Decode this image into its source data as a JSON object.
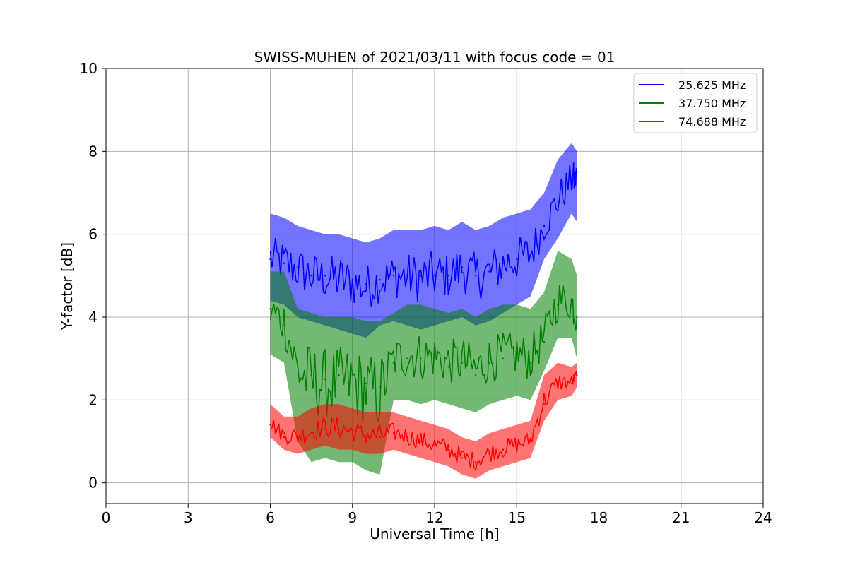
{
  "chart_data": {
    "type": "line",
    "title": "SWISS-MUHEN of 2021/03/11 with focus code = 01",
    "xlabel": "Universal Time [h]",
    "ylabel": "Y-factor [dB]",
    "xlim": [
      0,
      24
    ],
    "ylim": [
      -0.5,
      10
    ],
    "xticks": [
      0,
      3,
      6,
      9,
      12,
      15,
      18,
      21,
      24
    ],
    "yticks": [
      0,
      2,
      4,
      6,
      8,
      10
    ],
    "grid": true,
    "legend_position": "top-right",
    "series": [
      {
        "name": "25.625 MHz",
        "color": "#0000ff",
        "x": [
          6.0,
          6.5,
          7.0,
          7.5,
          8.0,
          8.5,
          9.0,
          9.5,
          10.0,
          10.5,
          11.0,
          11.5,
          12.0,
          12.5,
          13.0,
          13.5,
          14.0,
          14.5,
          15.0,
          15.5,
          16.0,
          16.5,
          17.0,
          17.2
        ],
        "y": [
          5.4,
          5.3,
          5.2,
          5.0,
          5.0,
          5.0,
          4.9,
          4.8,
          4.9,
          5.0,
          5.0,
          5.0,
          5.0,
          5.0,
          5.2,
          5.0,
          5.1,
          5.3,
          5.4,
          5.5,
          6.2,
          6.8,
          7.3,
          7.5
        ],
        "band": [
          [
            4.4,
            6.5
          ],
          [
            4.3,
            6.4
          ],
          [
            4.0,
            6.2
          ],
          [
            3.9,
            6.1
          ],
          [
            3.8,
            6.0
          ],
          [
            3.7,
            6.0
          ],
          [
            3.6,
            5.9
          ],
          [
            3.5,
            5.8
          ],
          [
            3.8,
            5.9
          ],
          [
            3.9,
            6.1
          ],
          [
            3.8,
            6.1
          ],
          [
            3.7,
            6.1
          ],
          [
            3.8,
            6.2
          ],
          [
            3.9,
            6.1
          ],
          [
            4.0,
            6.3
          ],
          [
            3.8,
            6.1
          ],
          [
            3.9,
            6.2
          ],
          [
            4.1,
            6.4
          ],
          [
            4.3,
            6.5
          ],
          [
            4.5,
            6.6
          ],
          [
            5.4,
            7.0
          ],
          [
            5.9,
            7.8
          ],
          [
            6.5,
            8.2
          ],
          [
            6.3,
            8.0
          ]
        ]
      },
      {
        "name": "37.750 MHz",
        "color": "#008000",
        "x": [
          6.0,
          6.5,
          7.0,
          7.5,
          8.0,
          8.5,
          9.0,
          9.5,
          10.0,
          10.5,
          11.0,
          11.5,
          12.0,
          12.5,
          13.0,
          13.5,
          14.0,
          14.5,
          15.0,
          15.5,
          16.0,
          16.5,
          17.0,
          17.2
        ],
        "y": [
          4.2,
          3.8,
          2.8,
          2.6,
          2.5,
          2.6,
          2.6,
          2.4,
          2.3,
          2.9,
          3.0,
          3.0,
          3.0,
          2.8,
          2.9,
          2.6,
          2.9,
          3.0,
          3.0,
          2.9,
          3.4,
          4.3,
          4.3,
          4.0
        ],
        "band": [
          [
            3.1,
            5.1
          ],
          [
            2.9,
            5.1
          ],
          [
            1.0,
            4.2
          ],
          [
            0.5,
            4.1
          ],
          [
            0.6,
            4.0
          ],
          [
            0.5,
            4.0
          ],
          [
            0.5,
            4.0
          ],
          [
            0.3,
            3.9
          ],
          [
            0.2,
            3.9
          ],
          [
            2.0,
            4.1
          ],
          [
            2.0,
            4.3
          ],
          [
            1.9,
            4.3
          ],
          [
            2.0,
            4.2
          ],
          [
            1.9,
            4.1
          ],
          [
            1.8,
            4.2
          ],
          [
            1.7,
            4.0
          ],
          [
            1.9,
            4.2
          ],
          [
            2.0,
            4.3
          ],
          [
            2.1,
            4.3
          ],
          [
            2.0,
            4.2
          ],
          [
            2.7,
            4.6
          ],
          [
            3.5,
            5.6
          ],
          [
            3.5,
            5.4
          ],
          [
            3.0,
            5.0
          ]
        ]
      },
      {
        "name": "74.688 MHz",
        "color": "#ff0000",
        "x": [
          6.0,
          6.5,
          7.0,
          7.5,
          8.0,
          8.5,
          9.0,
          9.5,
          10.0,
          10.5,
          11.0,
          11.5,
          12.0,
          12.5,
          13.0,
          13.5,
          14.0,
          14.5,
          15.0,
          15.5,
          16.0,
          16.5,
          17.0,
          17.2
        ],
        "y": [
          1.4,
          1.1,
          1.1,
          1.2,
          1.3,
          1.3,
          1.2,
          1.1,
          1.1,
          1.2,
          1.1,
          1.0,
          0.9,
          0.8,
          0.6,
          0.5,
          0.7,
          0.8,
          0.9,
          1.0,
          1.9,
          2.4,
          2.4,
          2.6
        ],
        "band": [
          [
            1.1,
            1.9
          ],
          [
            0.8,
            1.6
          ],
          [
            0.7,
            1.6
          ],
          [
            0.8,
            1.8
          ],
          [
            0.9,
            1.9
          ],
          [
            0.8,
            1.9
          ],
          [
            0.8,
            1.8
          ],
          [
            0.7,
            1.7
          ],
          [
            0.7,
            1.7
          ],
          [
            0.8,
            1.7
          ],
          [
            0.7,
            1.6
          ],
          [
            0.6,
            1.5
          ],
          [
            0.5,
            1.4
          ],
          [
            0.4,
            1.3
          ],
          [
            0.2,
            1.1
          ],
          [
            0.1,
            1.0
          ],
          [
            0.3,
            1.2
          ],
          [
            0.4,
            1.3
          ],
          [
            0.5,
            1.4
          ],
          [
            0.6,
            1.5
          ],
          [
            1.5,
            2.6
          ],
          [
            2.0,
            2.9
          ],
          [
            2.1,
            2.8
          ],
          [
            2.3,
            2.9
          ]
        ]
      }
    ]
  }
}
